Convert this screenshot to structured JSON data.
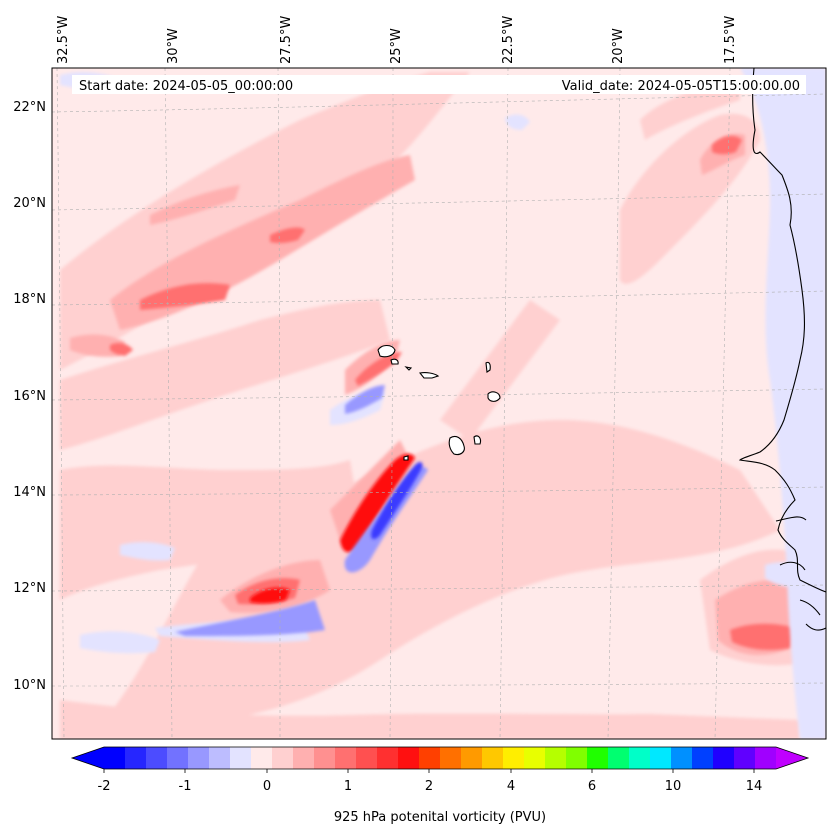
{
  "info": {
    "start_date": "Start date: 2024-05-05_00:00:00",
    "valid_date": "Valid_date: 2024-05-05T15:00:00.00"
  },
  "lon_labels": [
    "32.5°W",
    "30°W",
    "27.5°W",
    "25°W",
    "22.5°W",
    "20°W",
    "17.5°W"
  ],
  "lat_labels": [
    "22°N",
    "20°N",
    "18°N",
    "16°N",
    "14°N",
    "12°N",
    "10°N"
  ],
  "colorbar": {
    "label": "925 hPa potenital vorticity (PVU)",
    "tick_labels": [
      "-2",
      "-1",
      "0",
      "1",
      "2",
      "4",
      "6",
      "10",
      "14"
    ],
    "colors": [
      "#0000ff",
      "#2626ff",
      "#4c4cff",
      "#7272ff",
      "#9898ff",
      "#bdbdff",
      "#e3e3ff",
      "#ffeaea",
      "#ffd0d0",
      "#ffb0b0",
      "#ff9090",
      "#ff7070",
      "#ff5050",
      "#ff3030",
      "#ff1010",
      "#ff4000",
      "#ff7000",
      "#ff9a00",
      "#ffc800",
      "#ffee00",
      "#e8ff00",
      "#b5ff00",
      "#80ff00",
      "#20ff00",
      "#00ff70",
      "#00ffc8",
      "#00e8ff",
      "#0090ff",
      "#0040ff",
      "#2000ff",
      "#6000ff",
      "#a000ff"
    ],
    "under_color": "#0000ff",
    "over_color": "#c000ff"
  },
  "colors": {
    "background_field": "#ffeaea",
    "light_pink": "#ffd0d0",
    "pink": "#ffb0b0",
    "mid_red": "#ff9090",
    "red": "#ff5050",
    "deep_red": "#ff1010",
    "light_blue": "#e3e3ff",
    "blue": "#9898ff",
    "deep_blue": "#3a3aff",
    "coastline": "#000000",
    "gridline": "#b0b0b0"
  }
}
